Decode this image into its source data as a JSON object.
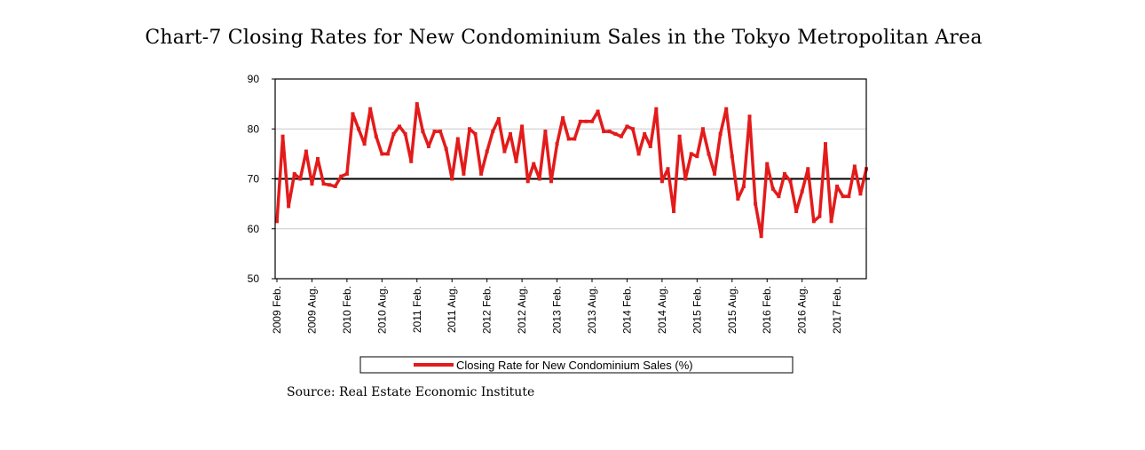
{
  "chart_data": {
    "type": "line",
    "title": "Chart-7 Closing Rates for New Condominium Sales in the Tokyo Metropolitan Area",
    "ylim": [
      50,
      90
    ],
    "yticks": [
      50,
      60,
      70,
      80,
      90
    ],
    "reference_line": 70,
    "grid": true,
    "x_tick_labels": [
      "2009 Feb.",
      "2009 Aug.",
      "2010 Feb.",
      "2010 Aug.",
      "2011 Feb.",
      "2011 Aug.",
      "2012 Feb.",
      "2012 Aug.",
      "2013 Feb.",
      "2013 Aug.",
      "2014 Feb.",
      "2014 Aug.",
      "2015 Feb.",
      "2015 Aug.",
      "2016 Feb.",
      "2016 Aug.",
      "2017 Feb."
    ],
    "x_tick_step_months": 6,
    "series": [
      {
        "name": "Closing Rate for New Condominium Sales (%)",
        "color": "#e31b1b",
        "start": "2009 Feb.",
        "values": [
          61.5,
          78.5,
          64.5,
          71,
          70,
          75.5,
          69,
          74,
          69,
          68.8,
          68.5,
          70.5,
          71,
          83,
          80,
          77,
          84,
          78.5,
          75,
          75,
          79,
          80.5,
          79,
          73.5,
          85,
          79.5,
          76.5,
          79.5,
          79.5,
          76,
          70,
          78,
          71,
          80,
          79,
          71,
          75.5,
          79.5,
          82,
          75.5,
          79,
          73.5,
          80.5,
          69.5,
          73,
          70,
          79.5,
          69.5,
          77,
          82.2,
          78,
          78,
          81.5,
          81.5,
          81.5,
          83.5,
          79.5,
          79.5,
          79,
          78.5,
          80.5,
          80,
          75,
          79,
          76.5,
          84,
          69.5,
          72,
          63.5,
          78.5,
          70,
          75,
          74.5,
          80,
          75,
          71,
          79,
          84,
          74.5,
          66,
          68.5,
          82.5,
          65,
          58.5,
          73,
          68,
          66.5,
          71,
          69.5,
          63.5,
          67.5,
          72,
          61.5,
          62.5,
          77,
          61.5,
          68.5,
          66.5,
          66.5,
          72.5,
          67,
          72
        ]
      }
    ],
    "legend": "Closing Rate for New Condominium Sales (%)",
    "legend_position": "bottom"
  },
  "source": "Source: Real Estate Economic Institute"
}
